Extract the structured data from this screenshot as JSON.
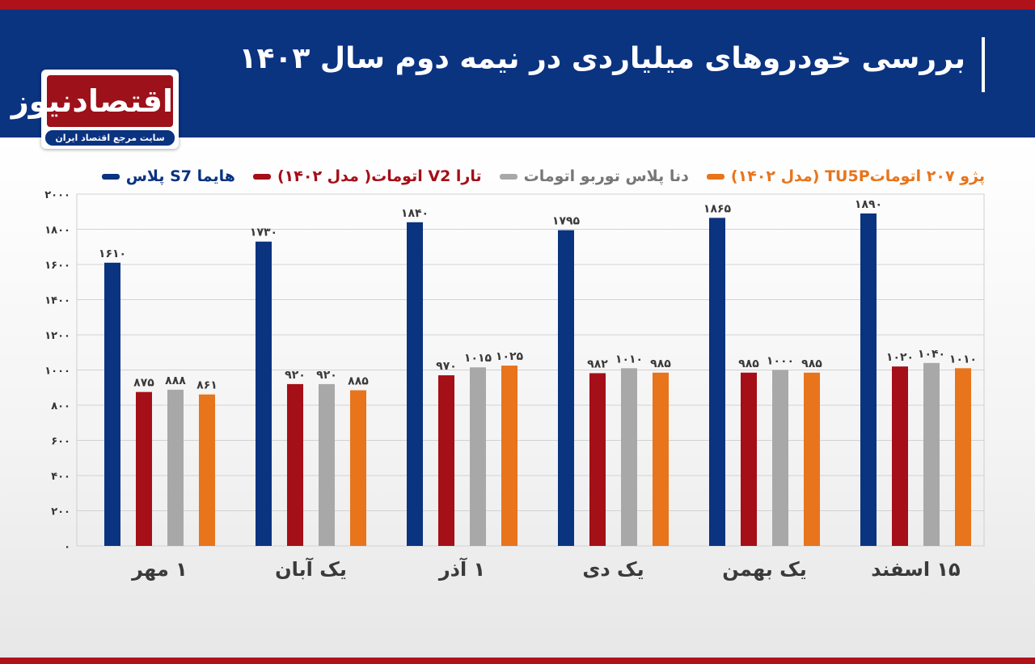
{
  "header": {
    "title": "بررسی خودروهای میلیاردی در نیمه دوم سال ۱۴۰۳"
  },
  "logo": {
    "name": "اقتصادنیوز",
    "tagline": "سایت مرجع اقتصاد ایران"
  },
  "colors": {
    "header_bg": "#0a3380",
    "accent_red": "#b0121b"
  },
  "chart_data": {
    "type": "bar",
    "title": "بررسی خودروهای میلیاردی در نیمه دوم سال ۱۴۰۳",
    "xlabel": "",
    "ylabel": "",
    "ylim": [
      0,
      2000
    ],
    "yticks": [
      0,
      200,
      400,
      600,
      800,
      1000,
      1200,
      1400,
      1600,
      1800,
      2000
    ],
    "ytick_labels": [
      "۰",
      "۲۰۰",
      "۴۰۰",
      "۶۰۰",
      "۸۰۰",
      "۱۰۰۰",
      "۱۲۰۰",
      "۱۴۰۰",
      "۱۶۰۰",
      "۱۸۰۰",
      "۲۰۰۰"
    ],
    "grid": true,
    "legend_position": "top",
    "categories": [
      "۱ مهر",
      "یک آبان",
      "۱ آذر",
      "یک دی",
      "یک بهمن",
      "۱۵ اسفند"
    ],
    "series": [
      {
        "name": "هایما S7 پلاس",
        "color": "#0a3380",
        "values": [
          1610,
          1730,
          1840,
          1795,
          1865,
          1890
        ],
        "labels": [
          "۱۶۱۰",
          "۱۷۳۰",
          "۱۸۴۰",
          "۱۷۹۵",
          "۱۸۶۵",
          "۱۸۹۰"
        ]
      },
      {
        "name": "تارا V2 اتومات( مدل ۱۴۰۲)",
        "color": "#a40f18",
        "values": [
          875,
          920,
          970,
          982,
          985,
          1020
        ],
        "labels": [
          "۸۷۵",
          "۹۲۰",
          "۹۷۰",
          "۹۸۲",
          "۹۸۵",
          "۱۰۲۰"
        ]
      },
      {
        "name": "دنا پلاس توربو اتومات",
        "color": "#a8a8a8",
        "values": [
          888,
          920,
          1015,
          1010,
          1000,
          1040
        ],
        "labels": [
          "۸۸۸",
          "۹۲۰",
          "۱۰۱۵",
          "۱۰۱۰",
          "۱۰۰۰",
          "۱۰۴۰"
        ]
      },
      {
        "name": "پژو ۲۰۷ اتوماتTU5P (مدل ۱۴۰۲)",
        "color": "#e8741c",
        "values": [
          861,
          885,
          1025,
          985,
          985,
          1010
        ],
        "labels": [
          "۸۶۱",
          "۸۸۵",
          "۱۰۲۵",
          "۹۸۵",
          "۹۸۵",
          "۱۰۱۰"
        ]
      }
    ]
  }
}
